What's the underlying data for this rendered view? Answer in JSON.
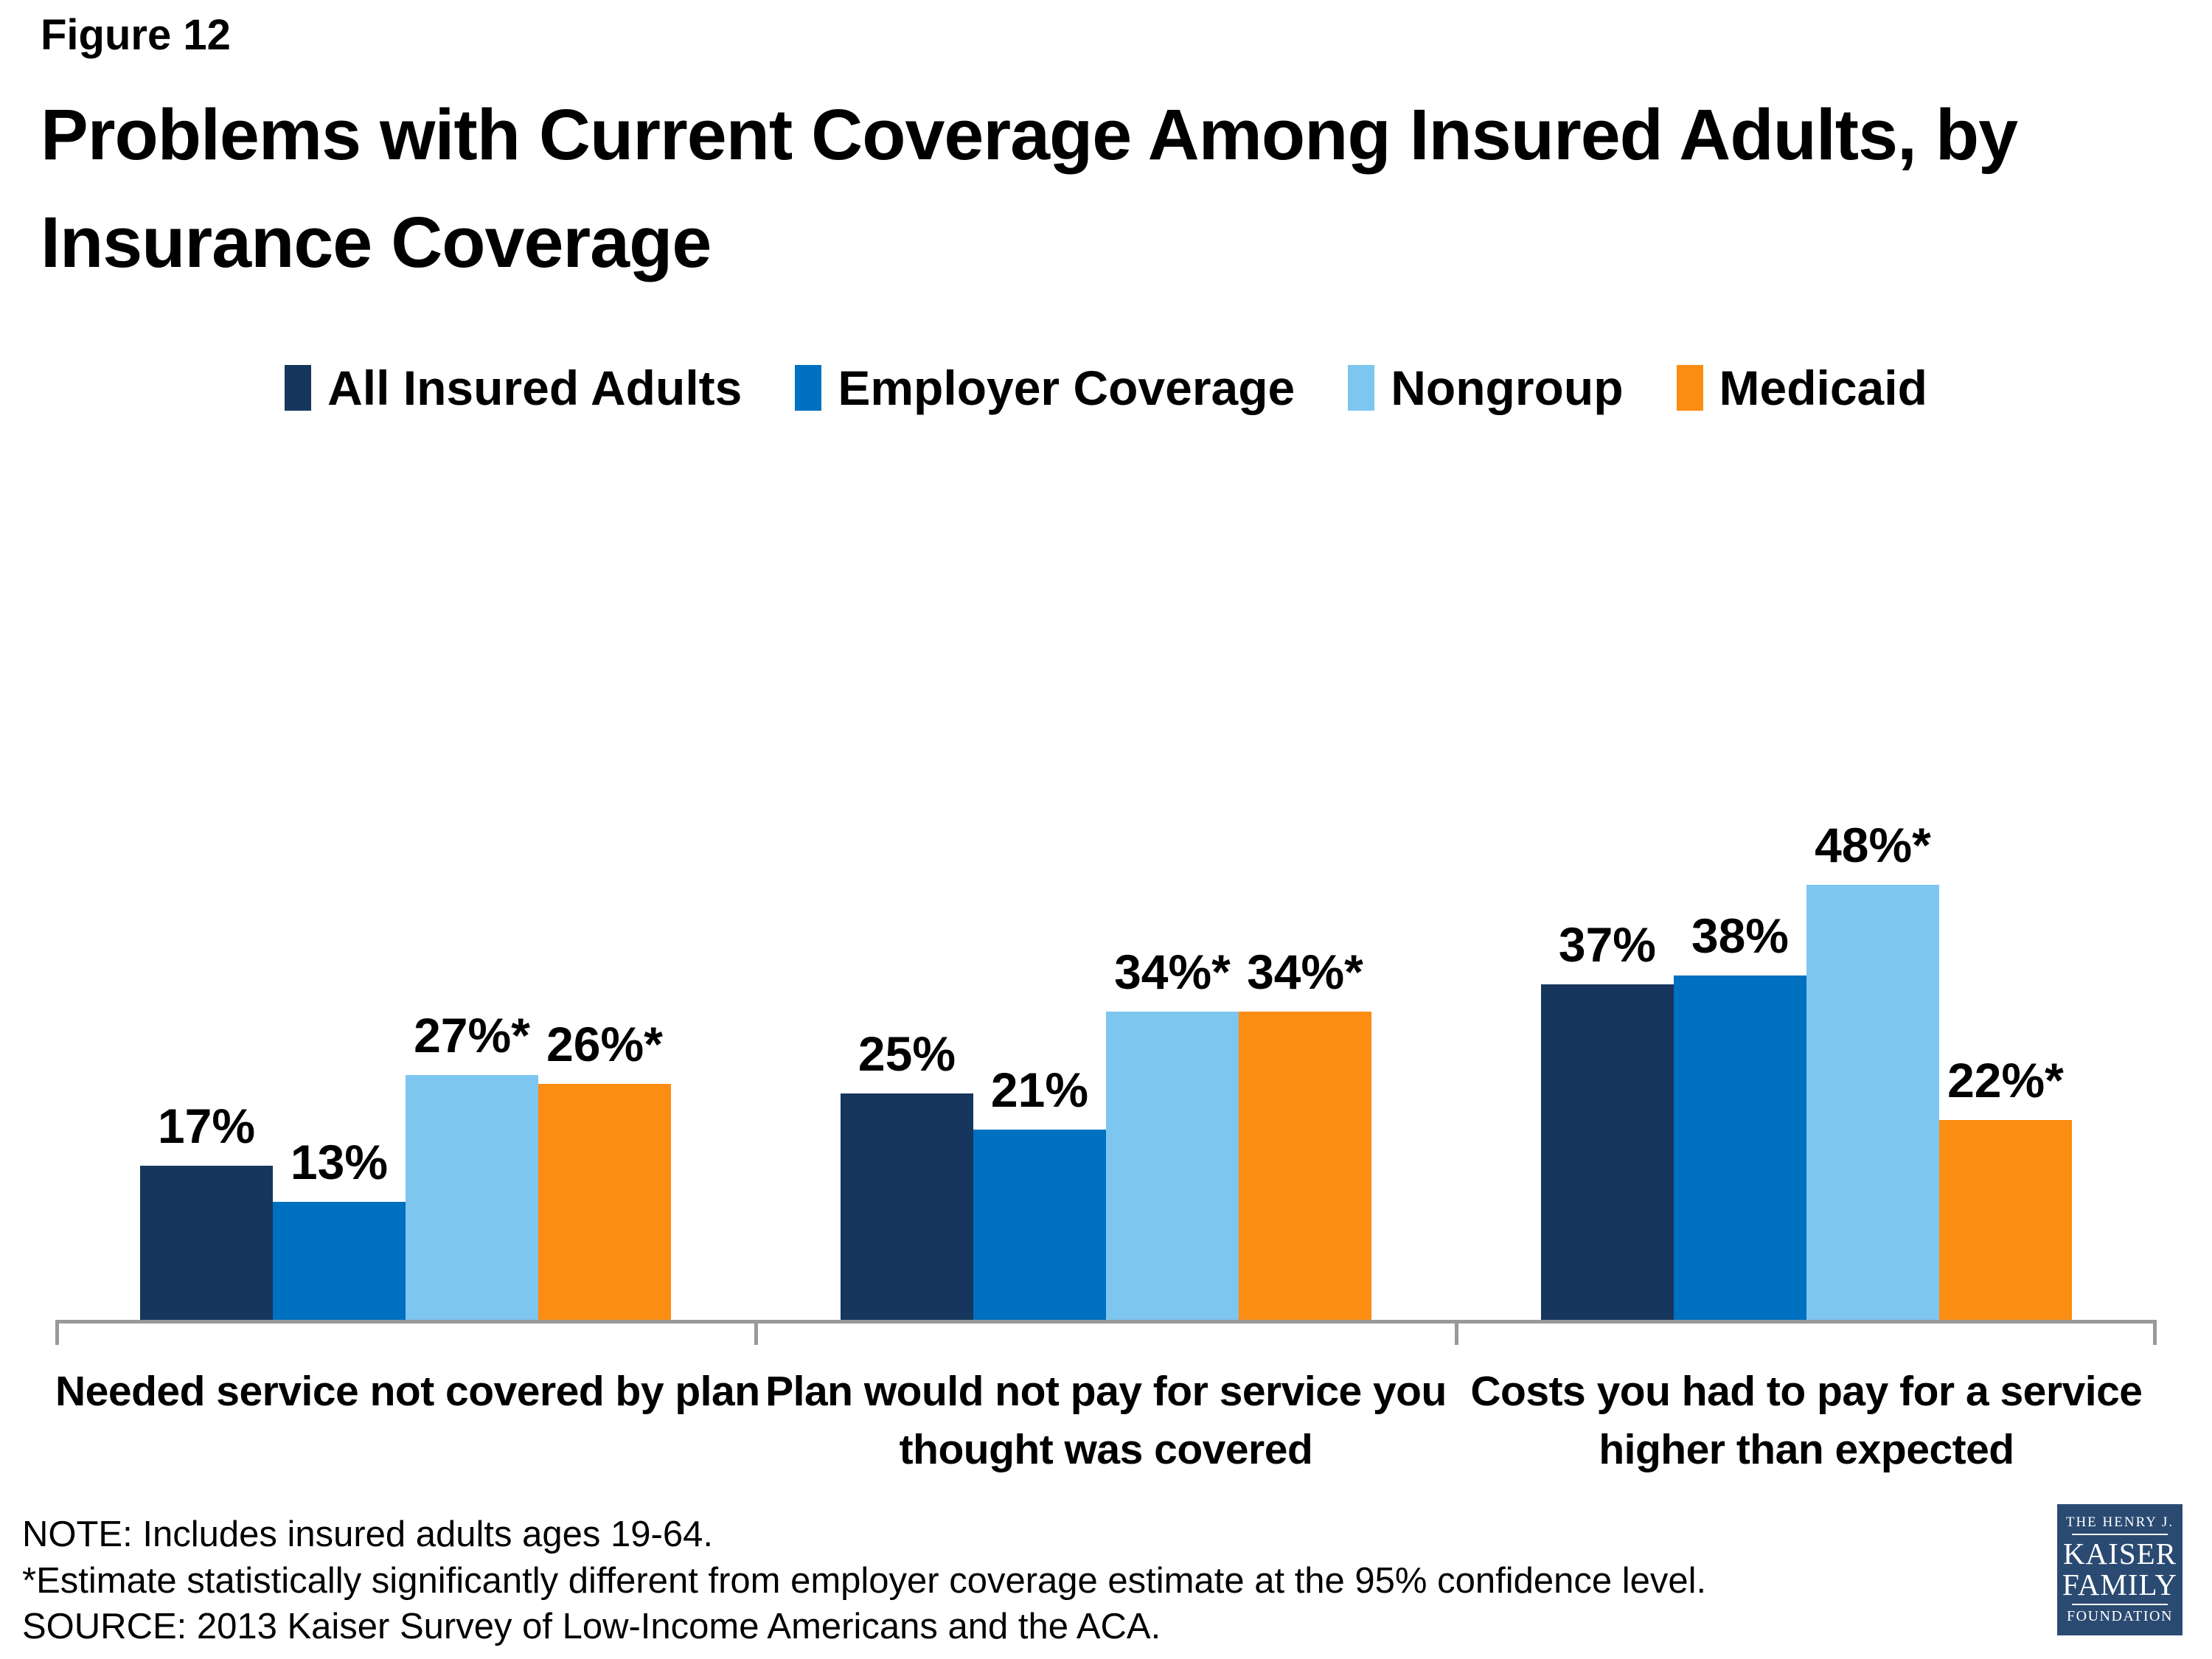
{
  "figure_label": "Figure 12",
  "title": "Problems with Current Coverage Among Insured Adults, by Insurance Coverage",
  "title_lines": [
    "Problems with Current Coverage Among Insured Adults, by",
    "Insurance Coverage"
  ],
  "chart_data": {
    "type": "bar",
    "categories": [
      "Needed service not covered by plan",
      "Plan would not pay for service you thought was covered",
      "Costs you had to pay for a service higher than expected"
    ],
    "category_label_lines": [
      [
        "Needed service not covered by plan"
      ],
      [
        "Plan would not pay for service you",
        "thought was covered"
      ],
      [
        "Costs you had to pay for a service",
        "higher than expected"
      ]
    ],
    "series": [
      {
        "name": "All Insured Adults",
        "color": "#17365D",
        "values": [
          17,
          25,
          37
        ],
        "data_labels": [
          "17%",
          "25%",
          "37%"
        ]
      },
      {
        "name": "Employer Coverage",
        "color": "#0070C0",
        "values": [
          13,
          21,
          38
        ],
        "data_labels": [
          "13%",
          "21%",
          "38%"
        ]
      },
      {
        "name": "Nongroup",
        "color": "#7DC6EF",
        "values": [
          27,
          34,
          48
        ],
        "data_labels": [
          "27%*",
          "34%*",
          "48%*"
        ]
      },
      {
        "name": "Medicaid",
        "color": "#FA8D12",
        "values": [
          26,
          34,
          22
        ],
        "data_labels": [
          "26%*",
          "34%*",
          "22%*"
        ]
      }
    ],
    "unit": "%",
    "ylim": [
      0,
      60
    ],
    "gridlines": false,
    "legend_position": "top",
    "axis_color": "#999999"
  },
  "notes": [
    "NOTE: Includes insured adults ages 19-64.",
    "*Estimate statistically significantly different from employer coverage estimate  at the 95% confidence level.",
    "SOURCE: 2013 Kaiser Survey of Low-Income Americans and the ACA."
  ],
  "logo": {
    "top": "THE HENRY J.",
    "name1": "KAISER",
    "name2": "FAMILY",
    "bottom": "FOUNDATION",
    "background": "#2A4A72"
  }
}
